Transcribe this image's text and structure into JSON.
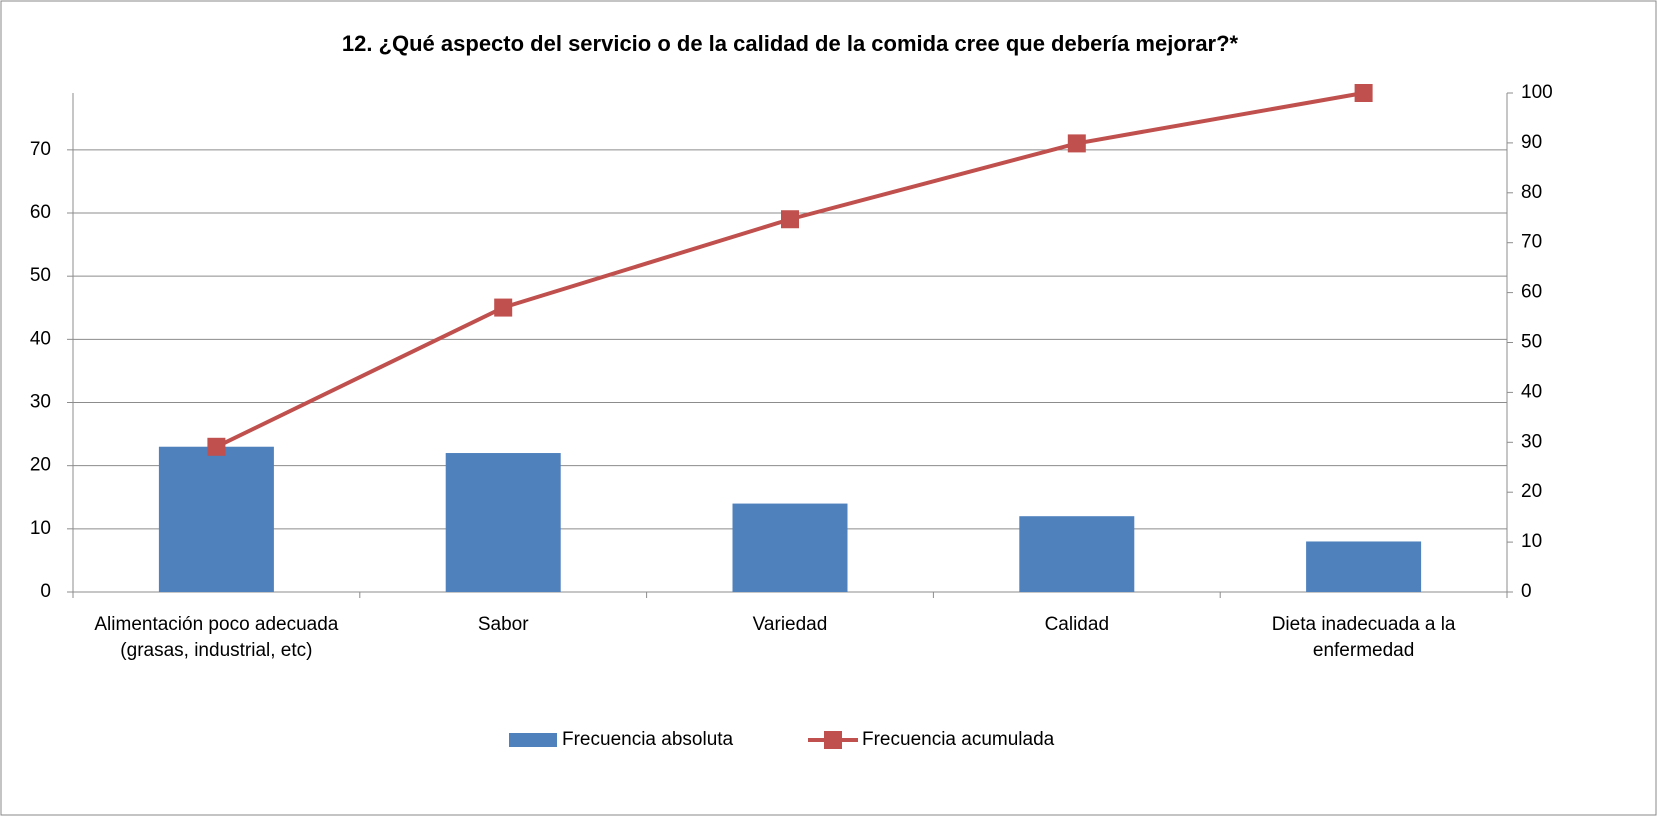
{
  "chart_data": {
    "type": "bar_line_pareto",
    "title": "12. ¿Qué aspecto del servicio o de la calidad de la comida cree que debería mejorar?*",
    "categories": [
      "Alimentación poco adecuada (grasas, industrial, etc)",
      "Sabor",
      "Variedad",
      "Calidad",
      "Dieta inadecuada a la enfermedad"
    ],
    "series": [
      {
        "name": "Frecuencia absoluta",
        "type": "bar",
        "color": "#4f81bd",
        "values": [
          23,
          22,
          14,
          12,
          8
        ]
      },
      {
        "name": "Frecuencia acumulada",
        "type": "line",
        "color": "#c0504d",
        "axis": "y2",
        "values": [
          29.1,
          57.0,
          74.7,
          89.9,
          100
        ]
      }
    ],
    "ylim": [
      0,
      79
    ],
    "yticks": [
      0,
      10,
      20,
      30,
      40,
      50,
      60,
      70
    ],
    "y2lim": [
      0,
      100
    ],
    "y2ticks": [
      0,
      10,
      20,
      30,
      40,
      50,
      60,
      70,
      80,
      90,
      100
    ],
    "grid": true,
    "legend": "bottom"
  }
}
